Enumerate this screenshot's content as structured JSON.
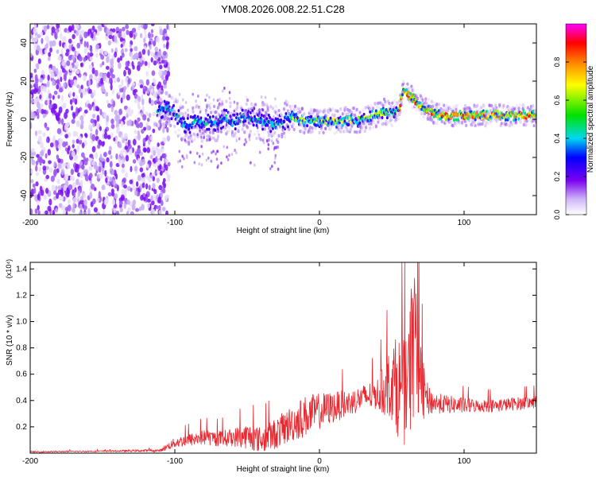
{
  "title": "YM08.2026.008.22.51.C28",
  "chart_data": [
    {
      "type": "heatmap",
      "title": "YM08.2026.008.22.51.C28",
      "xlabel": "Height of straight line (km)",
      "ylabel": "Frequency (Hz)",
      "xlim": [
        -200,
        150
      ],
      "ylim": [
        -50,
        50
      ],
      "x_ticks": [
        -200,
        -100,
        0,
        100
      ],
      "y_ticks": [
        -40,
        -20,
        0,
        20,
        40
      ],
      "colorbar": {
        "label": "Normalized spectral amplitude",
        "range": [
          0,
          1
        ],
        "ticks": [
          "0.0",
          "0.2",
          "0.4",
          "0.6",
          "0.8"
        ],
        "colormap": [
          "#ffffff",
          "#d0b8f8",
          "#7a00f0",
          "#0000ff",
          "#00d8f0",
          "#00e000",
          "#ffff00",
          "#ff8000",
          "#ff0000",
          "#ff00ff"
        ]
      },
      "ridge": {
        "x": [
          -112,
          -105,
          -100,
          -95,
          -90,
          -85,
          -80,
          -75,
          -70,
          -65,
          -60,
          -55,
          -50,
          -45,
          -40,
          -35,
          -30,
          -25,
          -20,
          -15,
          -10,
          -5,
          0,
          5,
          10,
          15,
          20,
          25,
          30,
          35,
          40,
          45,
          50,
          55,
          58,
          62,
          66,
          70,
          75,
          80,
          85,
          90,
          100,
          110,
          120,
          130,
          140,
          150
        ],
        "y": [
          5,
          6,
          3,
          -2,
          -4,
          0,
          -3,
          -1,
          -2,
          1,
          -2,
          0,
          2,
          0,
          -1,
          -2,
          -3,
          -1,
          1,
          0,
          -1,
          0,
          -1,
          -1,
          -1,
          -1,
          0,
          -1,
          0,
          1,
          3,
          4,
          3,
          4,
          16,
          13,
          10,
          7,
          5,
          3,
          2,
          2,
          2,
          2,
          2,
          2,
          2,
          2
        ]
      },
      "noise_region_x": [
        -200,
        -110
      ]
    },
    {
      "type": "line",
      "xlabel": "Height of straight line (km)",
      "ylabel": "SNR (10 * v/v)",
      "y_multiplier": "(x10⁴)",
      "xlim": [
        -200,
        150
      ],
      "ylim": [
        0,
        1.45
      ],
      "x_ticks": [
        -200,
        -100,
        0,
        100
      ],
      "y_ticks": [
        0.2,
        0.4,
        0.6,
        0.8,
        1.0,
        1.2,
        1.4
      ],
      "series": [
        {
          "color": "#e8262e",
          "x": [
            -200,
            -150,
            -110,
            -100,
            -90,
            -80,
            -70,
            -60,
            -50,
            -40,
            -30,
            -20,
            -10,
            0,
            10,
            20,
            30,
            40,
            45,
            50,
            55,
            60,
            65,
            70,
            75,
            80,
            90,
            100,
            110,
            120,
            130,
            140,
            150
          ],
          "y": [
            0.01,
            0.015,
            0.02,
            0.08,
            0.1,
            0.12,
            0.11,
            0.12,
            0.13,
            0.1,
            0.15,
            0.22,
            0.28,
            0.32,
            0.35,
            0.38,
            0.42,
            0.45,
            0.48,
            0.55,
            0.5,
            0.45,
            0.8,
            0.5,
            0.4,
            0.38,
            0.37,
            0.36,
            0.36,
            0.36,
            0.37,
            0.38,
            0.39
          ],
          "spread": [
            0.005,
            0.005,
            0.01,
            0.04,
            0.05,
            0.06,
            0.06,
            0.07,
            0.1,
            0.1,
            0.12,
            0.14,
            0.16,
            0.14,
            0.12,
            0.1,
            0.1,
            0.12,
            0.2,
            0.3,
            0.4,
            0.4,
            0.6,
            0.3,
            0.12,
            0.08,
            0.07,
            0.06,
            0.05,
            0.05,
            0.05,
            0.05,
            0.05
          ]
        }
      ]
    }
  ]
}
